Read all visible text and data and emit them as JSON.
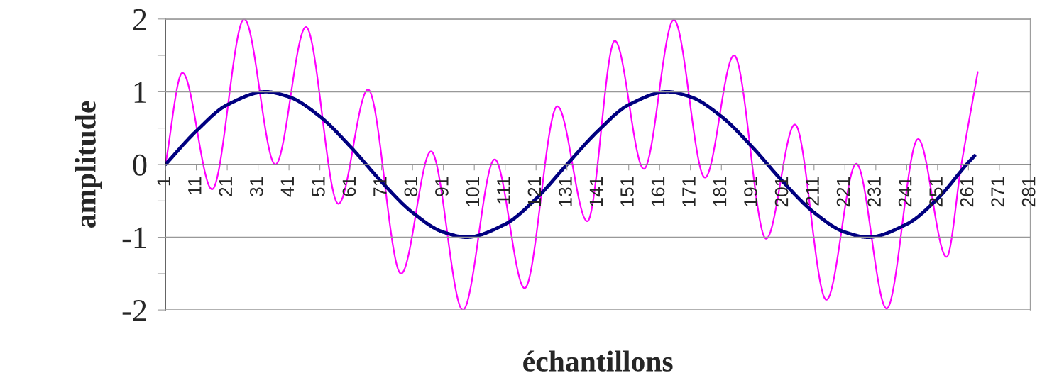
{
  "chart_data": {
    "type": "line",
    "xlabel": "échantillons",
    "ylabel": "amplitude",
    "xlim": [
      1,
      281
    ],
    "xticks": [
      1,
      11,
      21,
      31,
      41,
      51,
      61,
      71,
      81,
      91,
      101,
      111,
      121,
      131,
      141,
      151,
      161,
      171,
      181,
      191,
      201,
      211,
      221,
      231,
      241,
      251,
      261,
      271,
      281
    ],
    "ylim": [
      -2,
      2
    ],
    "yticks": [
      -2,
      {
        "value": -1.5,
        "label": null
      },
      -1,
      {
        "value": -0.5,
        "label": null
      },
      0,
      {
        "value": 0.5,
        "label": null
      },
      1,
      {
        "value": 1.5,
        "label": null
      },
      2
    ],
    "grid": "y",
    "legend": false,
    "marker": "none",
    "line_style": "solid",
    "series": [
      {
        "color": "#ff00ff",
        "x": [
          1,
          6.5,
          16.1,
          26.5,
          36.6,
          46.5,
          57,
          66.6,
          77.3,
          87,
          97.3,
          107.6,
          117.3,
          127.9,
          137.6,
          146.5,
          155.9,
          165.6,
          175.7,
          185.1,
          195.5,
          204.8,
          215,
          224.7,
          234.5,
          244.7,
          253.9,
          258.7,
          264
        ],
        "values": [
          0,
          1.26,
          -0.34,
          2.0,
          0.0,
          1.89,
          -0.54,
          1.03,
          -1.5,
          0.18,
          -2.0,
          0.07,
          -1.7,
          0.8,
          -0.78,
          1.7,
          -0.06,
          1.99,
          -0.18,
          1.5,
          -1.02,
          0.55,
          -1.86,
          0.01,
          -1.98,
          0.35,
          -1.27,
          0,
          1.27
        ]
      },
      {
        "color": "#000080",
        "x": [
          1,
          11,
          21,
          33.5,
          41,
          51,
          61,
          71,
          81,
          91,
          98.5,
          111,
          121,
          131,
          141,
          151,
          163.5,
          171,
          181,
          191,
          201,
          211,
          221,
          228.5,
          241,
          251,
          261,
          263
        ],
        "values": [
          0,
          0.46,
          0.82,
          1,
          0.93,
          0.66,
          0.24,
          -0.24,
          -0.66,
          -0.93,
          -1,
          -0.82,
          -0.47,
          0,
          0.46,
          0.82,
          1,
          0.93,
          0.66,
          0.24,
          -0.24,
          -0.66,
          -0.93,
          -1,
          -0.82,
          -0.47,
          0.03,
          0.12
        ]
      }
    ]
  }
}
